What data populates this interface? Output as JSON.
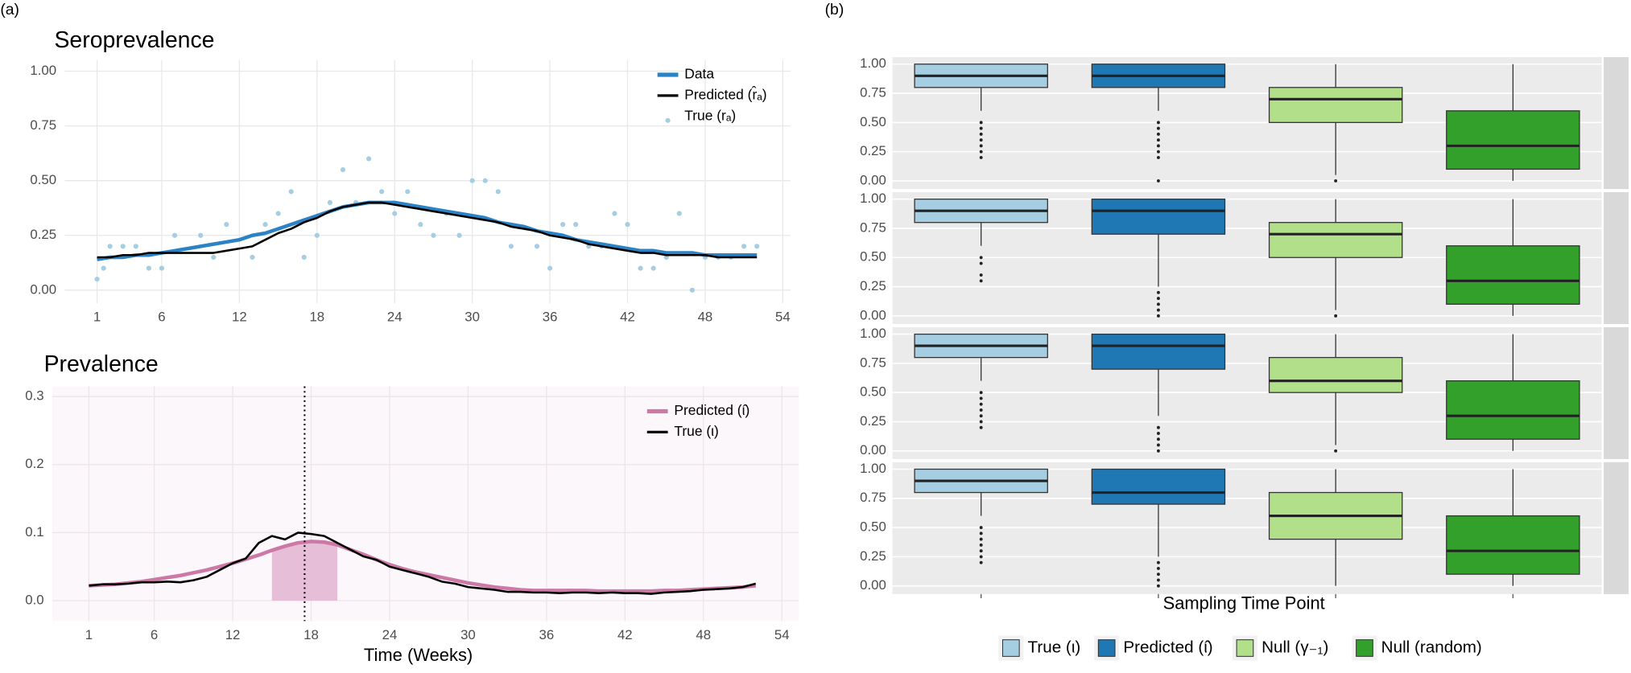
{
  "panel_labels": [
    "(a)",
    "(b)"
  ],
  "chart_data": [
    {
      "type": "line",
      "title": "Seroprevalence",
      "x": [
        1,
        2,
        3,
        4,
        5,
        6,
        7,
        8,
        9,
        10,
        11,
        12,
        13,
        14,
        15,
        16,
        17,
        18,
        19,
        20,
        21,
        22,
        23,
        24,
        25,
        26,
        27,
        28,
        29,
        30,
        31,
        32,
        33,
        34,
        35,
        36,
        37,
        38,
        39,
        40,
        41,
        42,
        43,
        44,
        45,
        46,
        47,
        48,
        49,
        50,
        51,
        52
      ],
      "xlim": [
        -1.5,
        54.6
      ],
      "xticks": [
        1,
        6,
        12,
        18,
        24,
        30,
        36,
        42,
        48,
        54
      ],
      "ylim": [
        -0.06,
        1.05
      ],
      "yticks": [
        {
          "value": 0,
          "label": "0.00"
        },
        0.25,
        {
          "value": 0.5,
          "label": "0.50"
        },
        0.75,
        {
          "value": 1,
          "label": "1.00"
        }
      ],
      "grid": true,
      "legend_position": "top-right",
      "series": [
        {
          "name": "Data",
          "color": "#2b83c6",
          "values": [
            0.14,
            0.15,
            0.15,
            0.16,
            0.16,
            0.17,
            0.18,
            0.19,
            0.2,
            0.21,
            0.22,
            0.23,
            0.25,
            0.26,
            0.28,
            0.3,
            0.32,
            0.34,
            0.36,
            0.38,
            0.39,
            0.4,
            0.4,
            0.4,
            0.39,
            0.38,
            0.37,
            0.36,
            0.35,
            0.34,
            0.33,
            0.31,
            0.3,
            0.29,
            0.27,
            0.26,
            0.25,
            0.23,
            0.22,
            0.21,
            0.2,
            0.19,
            0.18,
            0.18,
            0.17,
            0.17,
            0.17,
            0.16,
            0.16,
            0.16,
            0.16,
            0.16
          ]
        },
        {
          "name": "Predicted (r̂ₐ)",
          "color": "#000000",
          "values": [
            0.15,
            0.15,
            0.16,
            0.16,
            0.17,
            0.17,
            0.17,
            0.17,
            0.17,
            0.17,
            0.18,
            0.19,
            0.2,
            0.23,
            0.26,
            0.28,
            0.31,
            0.33,
            0.36,
            0.38,
            0.39,
            0.4,
            0.4,
            0.39,
            0.38,
            0.37,
            0.36,
            0.35,
            0.34,
            0.33,
            0.32,
            0.31,
            0.29,
            0.28,
            0.27,
            0.25,
            0.24,
            0.23,
            0.21,
            0.2,
            0.19,
            0.18,
            0.17,
            0.17,
            0.16,
            0.16,
            0.16,
            0.16,
            0.15,
            0.15,
            0.15,
            0.15
          ]
        },
        {
          "name": "True (rₐ)",
          "color": "#a6cee3",
          "type": "scatter",
          "x": [
            1,
            1.5,
            2,
            3,
            4,
            5,
            6,
            7,
            9,
            10,
            11,
            13,
            14,
            15,
            16,
            17,
            18,
            19,
            20,
            21,
            22,
            23,
            24,
            25,
            26,
            27,
            28,
            29,
            30,
            31,
            32,
            33,
            35,
            36,
            37,
            38,
            39,
            40,
            41,
            42,
            43,
            44,
            45,
            46,
            47,
            48,
            49,
            50,
            51,
            52
          ],
          "values": [
            0.05,
            0.1,
            0.2,
            0.2,
            0.2,
            0.1,
            0.1,
            0.25,
            0.25,
            0.15,
            0.3,
            0.15,
            0.3,
            0.35,
            0.45,
            0.15,
            0.25,
            0.4,
            0.55,
            0.4,
            0.6,
            0.45,
            0.35,
            0.45,
            0.3,
            0.25,
            0.35,
            0.25,
            0.5,
            0.5,
            0.45,
            0.2,
            0.2,
            0.1,
            0.3,
            0.3,
            0.2,
            0.2,
            0.35,
            0.3,
            0.1,
            0.1,
            0.15,
            0.35,
            0,
            0.15,
            0.15,
            0.15,
            0.2,
            0.2
          ]
        }
      ]
    },
    {
      "type": "line",
      "title": "Prevalence",
      "x_label": "Time (Weeks)",
      "x": [
        1,
        2,
        3,
        4,
        5,
        6,
        7,
        8,
        9,
        10,
        11,
        12,
        13,
        14,
        15,
        16,
        17,
        18,
        19,
        20,
        21,
        22,
        23,
        24,
        25,
        26,
        27,
        28,
        29,
        30,
        31,
        32,
        33,
        34,
        35,
        36,
        37,
        38,
        39,
        40,
        41,
        42,
        43,
        44,
        45,
        46,
        47,
        48,
        49,
        50,
        51,
        52
      ],
      "xlim": [
        -1.8,
        55.3
      ],
      "xticks": [
        1,
        6,
        12,
        18,
        24,
        30,
        36,
        42,
        48,
        54
      ],
      "ylim": [
        -0.03,
        0.315
      ],
      "yticks": [
        {
          "value": 0,
          "label": "0.0"
        },
        0.1,
        0.2,
        0.3
      ],
      "grid": true,
      "legend_position": "top-right",
      "shade": [
        15,
        20
      ],
      "vline": 17.5,
      "series": [
        {
          "name": "Predicted (ι̂)",
          "color": "#cc79a7",
          "values": [
            0.022,
            0.023,
            0.024,
            0.026,
            0.028,
            0.031,
            0.034,
            0.037,
            0.041,
            0.045,
            0.05,
            0.055,
            0.061,
            0.067,
            0.074,
            0.08,
            0.085,
            0.087,
            0.086,
            0.082,
            0.075,
            0.068,
            0.06,
            0.053,
            0.047,
            0.042,
            0.038,
            0.034,
            0.03,
            0.026,
            0.023,
            0.02,
            0.018,
            0.016,
            0.015,
            0.015,
            0.015,
            0.015,
            0.015,
            0.014,
            0.014,
            0.014,
            0.014,
            0.014,
            0.015,
            0.015,
            0.016,
            0.017,
            0.018,
            0.019,
            0.02,
            0.022
          ]
        },
        {
          "name": "True (ι)",
          "color": "#000000",
          "values": [
            0.022,
            0.024,
            0.024,
            0.025,
            0.027,
            0.027,
            0.028,
            0.027,
            0.03,
            0.035,
            0.045,
            0.055,
            0.062,
            0.085,
            0.095,
            0.09,
            0.1,
            0.098,
            0.095,
            0.085,
            0.075,
            0.065,
            0.06,
            0.05,
            0.045,
            0.04,
            0.035,
            0.028,
            0.025,
            0.02,
            0.018,
            0.016,
            0.013,
            0.013,
            0.012,
            0.012,
            0.011,
            0.012,
            0.012,
            0.011,
            0.012,
            0.011,
            0.011,
            0.01,
            0.012,
            0.013,
            0.014,
            0.016,
            0.017,
            0.018,
            0.02,
            0.025
          ]
        }
      ]
    },
    {
      "type": "box",
      "x_label": "Sampling Time Point",
      "categories": [
        null,
        null,
        null,
        null
      ],
      "ylim": [
        -0.07,
        1.06
      ],
      "yticks": [
        {
          "value": 0,
          "label": "0.00"
        },
        0.25,
        {
          "value": 0.5,
          "label": "0.50"
        },
        0.75,
        {
          "value": 1,
          "label": "1.00"
        }
      ],
      "grid": true,
      "legend_position": "bottom",
      "series": [
        {
          "name": "True (ι)",
          "color": "#a6cee3"
        },
        {
          "name": "Predicted (ι̂)",
          "color": "#1f78b4"
        },
        {
          "name": "Null (γ₋₁)",
          "color": "#b2df8a"
        },
        {
          "name": "Null (random)",
          "color": "#33a02c"
        }
      ],
      "panels": [
        {
          "boxes": [
            {
              "q1": 0.8,
              "median": 0.9,
              "q3": 1.0,
              "whisker_low": 0.6,
              "whisker_high": 1.0,
              "outliers": [
                0.5,
                0.45,
                0.4,
                0.35,
                0.3,
                0.25,
                0.2
              ]
            },
            {
              "q1": 0.8,
              "median": 0.9,
              "q3": 1.0,
              "whisker_low": 0.6,
              "whisker_high": 1.0,
              "outliers": [
                0.5,
                0.45,
                0.4,
                0.35,
                0.3,
                0.25,
                0.2,
                0
              ]
            },
            {
              "q1": 0.5,
              "median": 0.7,
              "q3": 0.8,
              "whisker_low": 0.05,
              "whisker_high": 1.0,
              "outliers": [
                0
              ]
            },
            {
              "q1": 0.1,
              "median": 0.3,
              "q3": 0.6,
              "whisker_low": 0,
              "whisker_high": 1.0,
              "outliers": []
            }
          ]
        },
        {
          "boxes": [
            {
              "q1": 0.8,
              "median": 0.9,
              "q3": 1.0,
              "whisker_low": 0.6,
              "whisker_high": 1.0,
              "outliers": [
                0.5,
                0.45,
                0.35,
                0.3
              ]
            },
            {
              "q1": 0.7,
              "median": 0.9,
              "q3": 1.0,
              "whisker_low": 0.25,
              "whisker_high": 1.0,
              "outliers": [
                0.2,
                0.15,
                0.1,
                0.05,
                0
              ]
            },
            {
              "q1": 0.5,
              "median": 0.7,
              "q3": 0.8,
              "whisker_low": 0.05,
              "whisker_high": 1.0,
              "outliers": [
                0
              ]
            },
            {
              "q1": 0.1,
              "median": 0.3,
              "q3": 0.6,
              "whisker_low": 0,
              "whisker_high": 1.0,
              "outliers": []
            }
          ]
        },
        {
          "boxes": [
            {
              "q1": 0.8,
              "median": 0.9,
              "q3": 1.0,
              "whisker_low": 0.6,
              "whisker_high": 1.0,
              "outliers": [
                0.5,
                0.45,
                0.4,
                0.35,
                0.3,
                0.25,
                0.2
              ]
            },
            {
              "q1": 0.7,
              "median": 0.9,
              "q3": 1.0,
              "whisker_low": 0.3,
              "whisker_high": 1.0,
              "outliers": [
                0.2,
                0.15,
                0.1,
                0.05,
                0
              ]
            },
            {
              "q1": 0.5,
              "median": 0.6,
              "q3": 0.8,
              "whisker_low": 0.05,
              "whisker_high": 1.0,
              "outliers": [
                0
              ]
            },
            {
              "q1": 0.1,
              "median": 0.3,
              "q3": 0.6,
              "whisker_low": 0,
              "whisker_high": 1.0,
              "outliers": []
            }
          ]
        },
        {
          "boxes": [
            {
              "q1": 0.8,
              "median": 0.9,
              "q3": 1.0,
              "whisker_low": 0.6,
              "whisker_high": 1.0,
              "outliers": [
                0.5,
                0.45,
                0.4,
                0.35,
                0.3,
                0.25,
                0.2
              ]
            },
            {
              "q1": 0.7,
              "median": 0.8,
              "q3": 1.0,
              "whisker_low": 0.25,
              "whisker_high": 1.0,
              "outliers": [
                0.2,
                0.15,
                0.1,
                0.05,
                0
              ]
            },
            {
              "q1": 0.4,
              "median": 0.6,
              "q3": 0.8,
              "whisker_low": 0,
              "whisker_high": 1.0,
              "outliers": []
            },
            {
              "q1": 0.1,
              "median": 0.3,
              "q3": 0.6,
              "whisker_low": 0,
              "whisker_high": 1.0,
              "outliers": []
            }
          ]
        }
      ]
    }
  ]
}
